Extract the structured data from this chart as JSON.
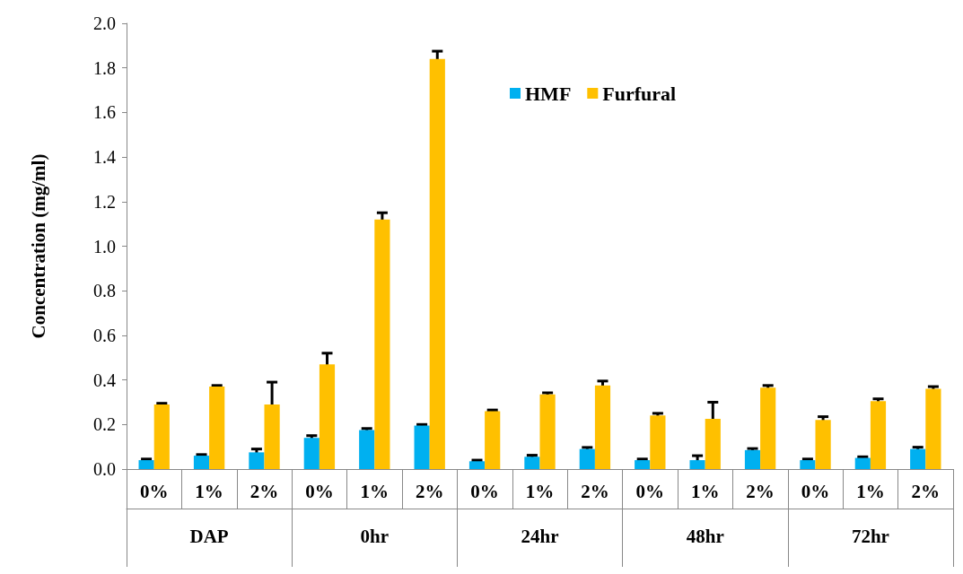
{
  "chart_data": {
    "type": "bar",
    "ylabel": "Concentration (mg/ml)",
    "categories": [
      "0%",
      "1%",
      "2%",
      "0%",
      "1%",
      "2%",
      "0%",
      "1%",
      "2%",
      "0%",
      "1%",
      "2%",
      "0%",
      "1%",
      "2%"
    ],
    "annotations": [
      "DAP",
      "0hr",
      "24hr",
      "48hr",
      "72hr"
    ],
    "series": [
      {
        "name": "HMF",
        "color": "#00b0f0",
        "values": [
          0.04,
          0.06,
          0.075,
          0.14,
          0.175,
          0.195,
          0.035,
          0.055,
          0.09,
          0.04,
          0.04,
          0.085,
          0.04,
          0.05,
          0.09
        ],
        "errors": [
          0.005,
          0.005,
          0.015,
          0.01,
          0.007,
          0.005,
          0.005,
          0.007,
          0.007,
          0.005,
          0.02,
          0.007,
          0.005,
          0.005,
          0.008
        ]
      },
      {
        "name": "Furfural",
        "color": "#ffc000",
        "values": [
          0.29,
          0.37,
          0.29,
          0.47,
          1.12,
          1.84,
          0.26,
          0.335,
          0.375,
          0.24,
          0.225,
          0.365,
          0.22,
          0.305,
          0.36
        ],
        "errors": [
          0.005,
          0.005,
          0.1,
          0.05,
          0.03,
          0.035,
          0.005,
          0.007,
          0.02,
          0.01,
          0.075,
          0.01,
          0.015,
          0.01,
          0.01
        ]
      }
    ],
    "ylim": [
      0,
      2
    ],
    "yticks": [
      {
        "value": 0,
        "label": "0.0"
      },
      0.2,
      0.4,
      0.6,
      0.8,
      {
        "value": 1,
        "label": "1.0"
      },
      1.2,
      1.4,
      1.6,
      1.8,
      {
        "value": 2,
        "label": "2.0"
      }
    ],
    "grid": false,
    "legend": "top"
  }
}
